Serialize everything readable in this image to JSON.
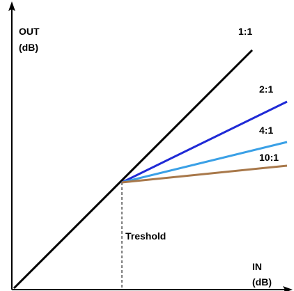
{
  "axes": {
    "y_label_line1": "OUT",
    "y_label_line2": "(dB)",
    "x_label_line1": "IN",
    "x_label_line2": "(dB)"
  },
  "threshold_label": "Treshold",
  "ratios": [
    {
      "label": "1:1",
      "color": "#000000"
    },
    {
      "label": "2:1",
      "color": "#1f2ad6"
    },
    {
      "label": "4:1",
      "color": "#3aa0e6"
    },
    {
      "label": "10:1",
      "color": "#a8784a"
    }
  ],
  "colors": {
    "axis": "#000000",
    "threshold_line": "#000000"
  }
}
